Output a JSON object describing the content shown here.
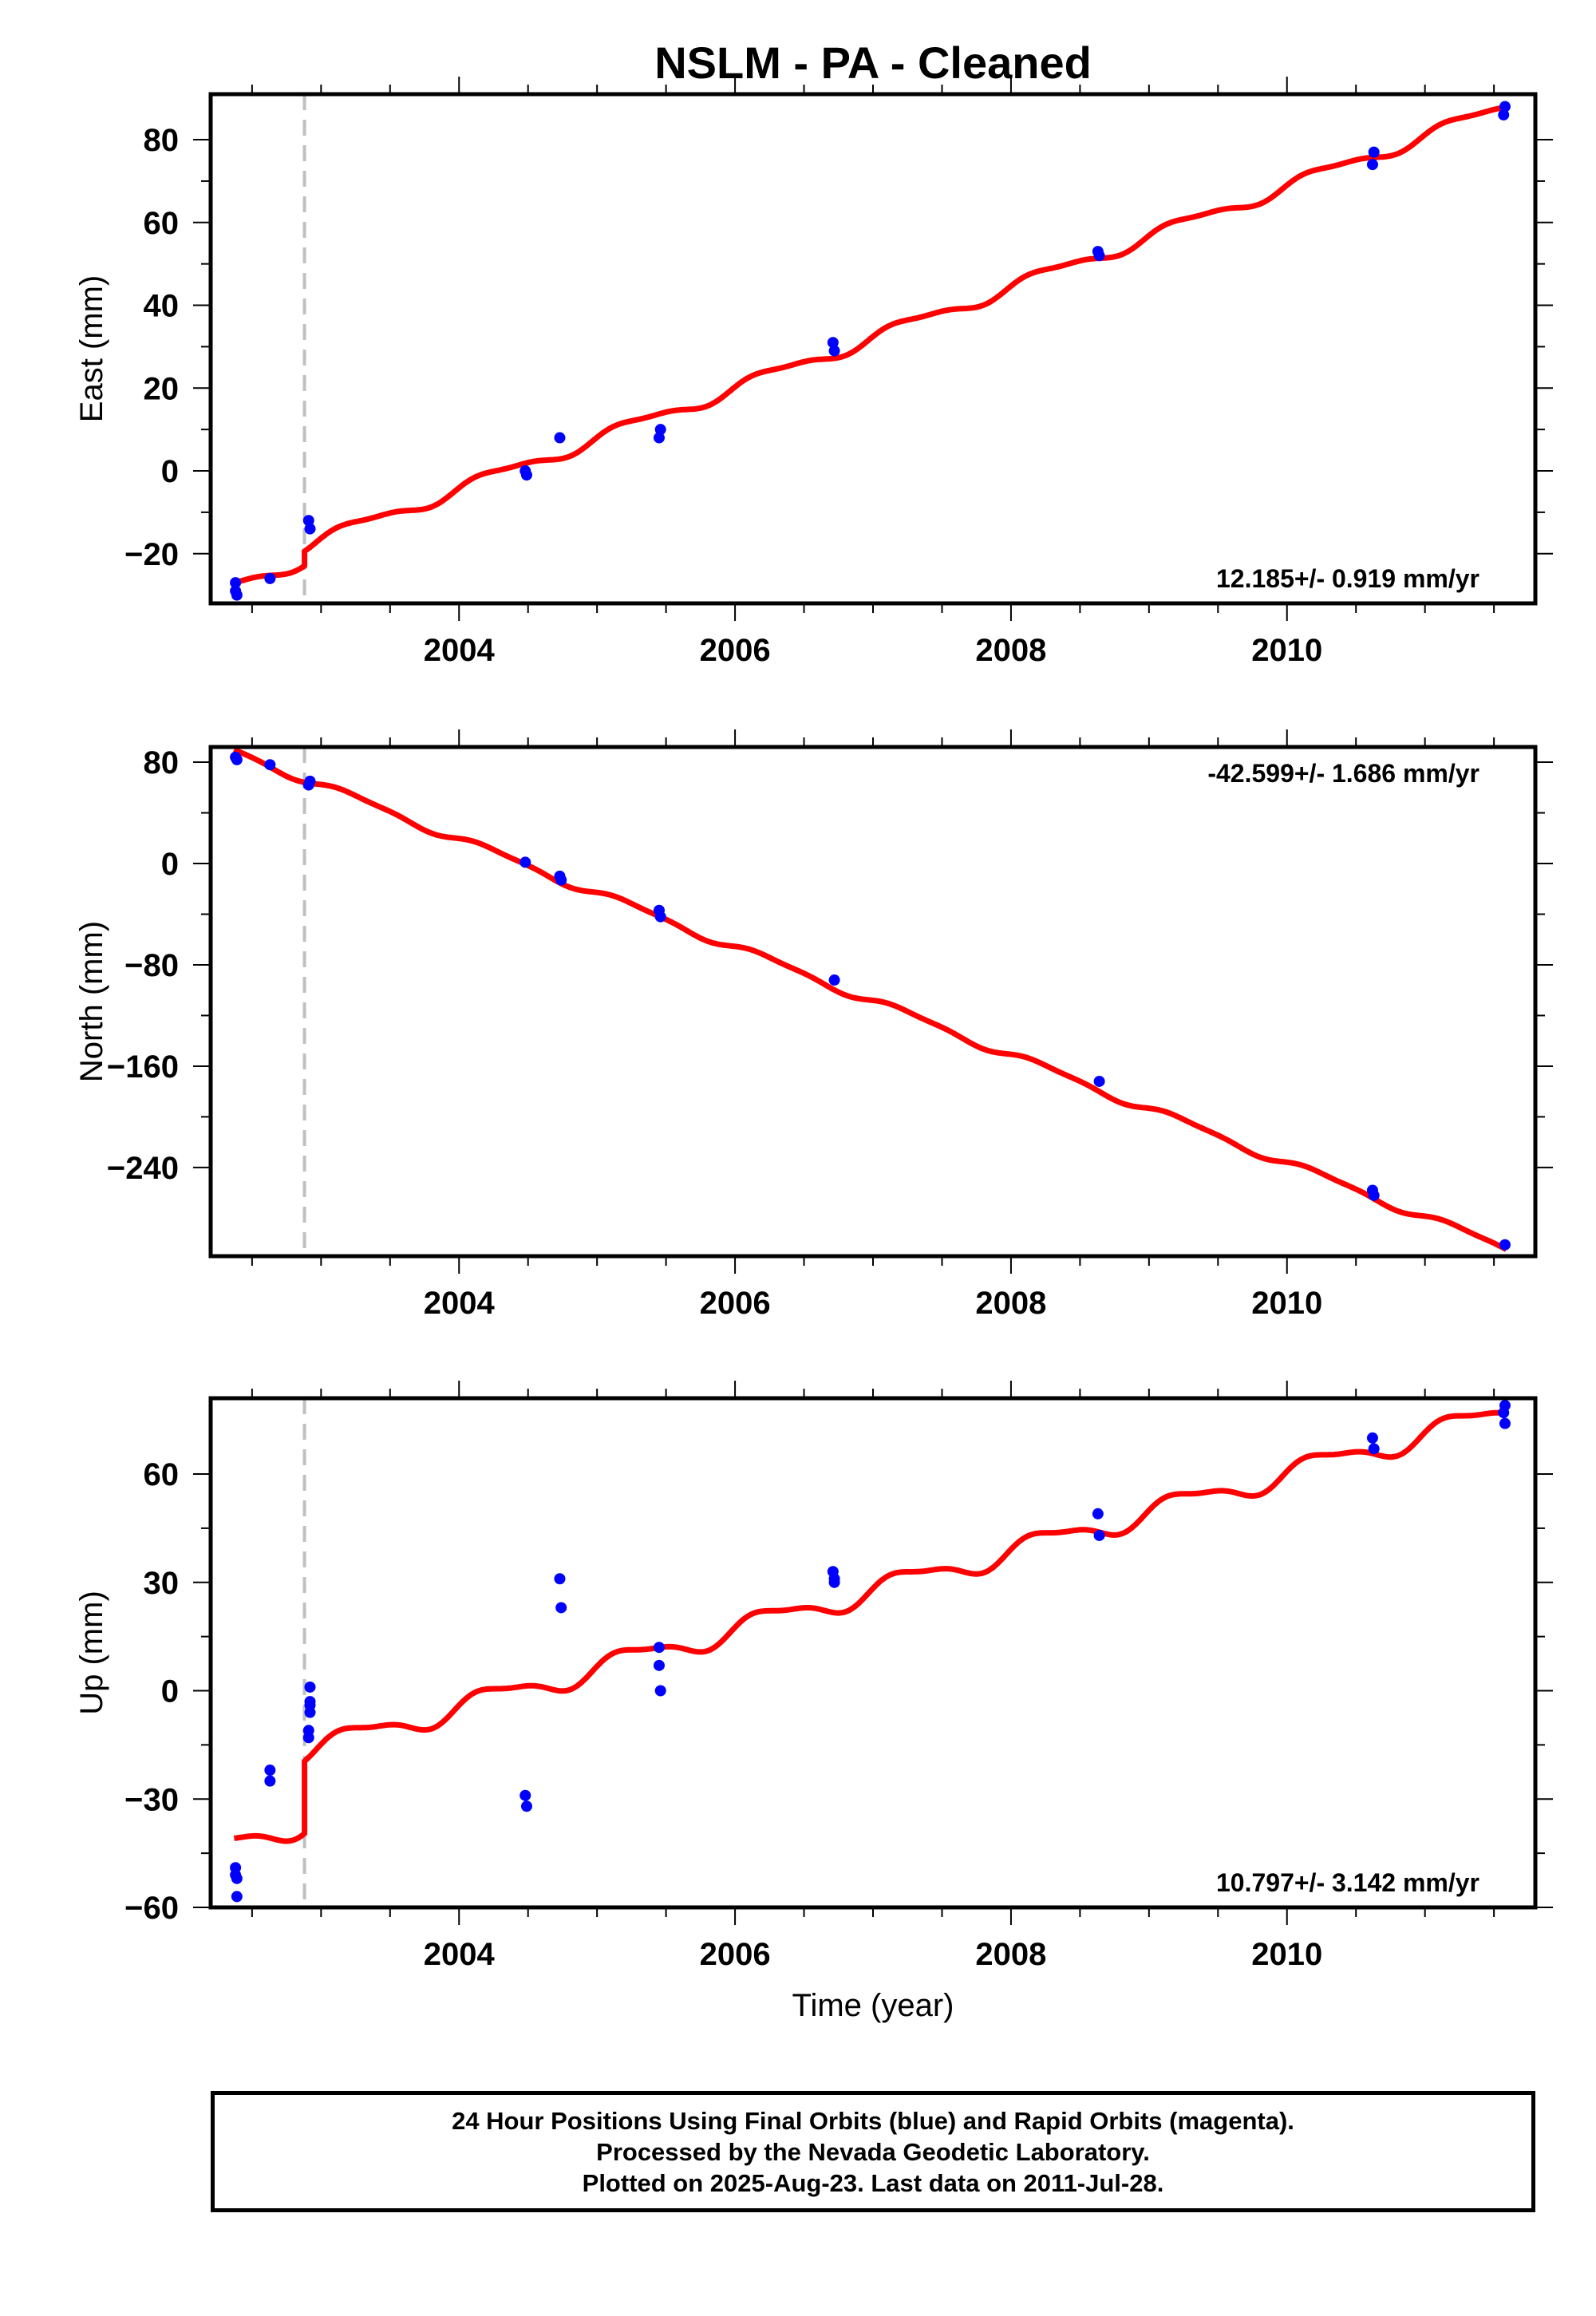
{
  "title": "NSLM  - PA - Cleaned",
  "colors": {
    "fit": "#ff0000",
    "final_orbits": "#0000ff",
    "rapid_orbits": "#ff00ff",
    "discontinuity": "#c0c0c0"
  },
  "footer": {
    "line1": "24 Hour Positions Using Final Orbits (blue) and Rapid Orbits (magenta).",
    "line2": "Processed by the Nevada Geodetic Laboratory.",
    "line3": "Plotted on 2025-Aug-23. Last data on 2011-Jul-28."
  },
  "chart_data": [
    {
      "type": "scatter",
      "ylabel": "East (mm)",
      "xlabel": "",
      "xlim": [
        2002.2,
        2011.8
      ],
      "ylim": [
        -32,
        91
      ],
      "xticks": [
        2004,
        2006,
        2008,
        2010
      ],
      "yticks": [
        -20,
        0,
        20,
        40,
        60,
        80
      ],
      "rate_label": "12.185+/- 0.919 mm/yr",
      "rate_position": "bottom-right",
      "discontinuity_x": 2002.88,
      "fit": {
        "rate": 12.185,
        "offset_at_2006": 20,
        "amp_annual": 1.5,
        "amp_semiannual": 0.5,
        "step": 3.5,
        "step_x": 2002.88
      },
      "series": [
        {
          "x": [
            2002.38,
            2002.38,
            2002.39,
            2002.63,
            2002.91,
            2002.92,
            2004.48,
            2004.49,
            2004.73,
            2005.45,
            2005.46,
            2006.71,
            2006.72,
            2008.63,
            2008.64,
            2010.62,
            2010.63,
            2011.57,
            2011.58
          ],
          "y": [
            -27,
            -29,
            -30,
            -26,
            -12,
            -14,
            0,
            -1,
            8,
            8,
            10,
            31,
            29,
            53,
            52,
            74,
            77,
            86,
            88
          ]
        }
      ]
    },
    {
      "type": "scatter",
      "ylabel": "North (mm)",
      "xlabel": "",
      "xlim": [
        2002.2,
        2011.8
      ],
      "ylim": [
        -310,
        92
      ],
      "xticks": [
        2004,
        2006,
        2008,
        2010
      ],
      "yticks": [
        -240,
        -160,
        -80,
        0,
        80
      ],
      "rate_label": "-42.599+/- 1.686 mm/yr",
      "rate_position": "top-right",
      "discontinuity_x": 2002.88,
      "fit": {
        "rate": -42.599,
        "offset_at_2006": -66,
        "amp_annual": 3,
        "amp_semiannual": 1,
        "step": 0,
        "step_x": 2002.88
      },
      "series": [
        {
          "x": [
            2002.38,
            2002.39,
            2002.63,
            2002.91,
            2002.92,
            2004.48,
            2004.73,
            2004.74,
            2005.45,
            2005.46,
            2006.72,
            2008.64,
            2010.62,
            2010.63,
            2011.58
          ],
          "y": [
            84,
            82,
            78,
            62,
            65,
            1,
            -10,
            -13,
            -37,
            -42,
            -92,
            -172,
            -258,
            -262,
            -301
          ]
        }
      ]
    },
    {
      "type": "scatter",
      "ylabel": "Up (mm)",
      "xlabel": "Time (year)",
      "xlim": [
        2002.2,
        2011.8
      ],
      "ylim": [
        -60,
        81
      ],
      "xticks": [
        2004,
        2006,
        2008,
        2010
      ],
      "yticks": [
        -60,
        -30,
        0,
        30,
        60
      ],
      "rate_label": "10.797+/- 3.142 mm/yr",
      "rate_position": "bottom-right",
      "discontinuity_x": 2002.88,
      "fit": {
        "rate": 10.797,
        "offset_at_2006": 17,
        "amp_annual": 3,
        "amp_semiannual": 1,
        "step": 20,
        "step_x": 2002.88
      },
      "series": [
        {
          "x": [
            2002.38,
            2002.38,
            2002.39,
            2002.39,
            2002.63,
            2002.63,
            2002.91,
            2002.91,
            2002.92,
            2002.92,
            2002.92,
            2002.92,
            2004.48,
            2004.49,
            2004.73,
            2004.74,
            2005.45,
            2005.45,
            2005.46,
            2006.71,
            2006.72,
            2006.72,
            2008.63,
            2008.64,
            2010.62,
            2010.63,
            2011.57,
            2011.58,
            2011.58
          ],
          "y": [
            -49,
            -51,
            -52,
            -57,
            -22,
            -25,
            -11,
            -13,
            -6,
            -4,
            -3,
            1,
            -29,
            -32,
            31,
            23,
            12,
            7,
            0,
            33,
            31,
            30,
            49,
            43,
            70,
            67,
            77,
            74,
            79
          ]
        }
      ]
    }
  ]
}
